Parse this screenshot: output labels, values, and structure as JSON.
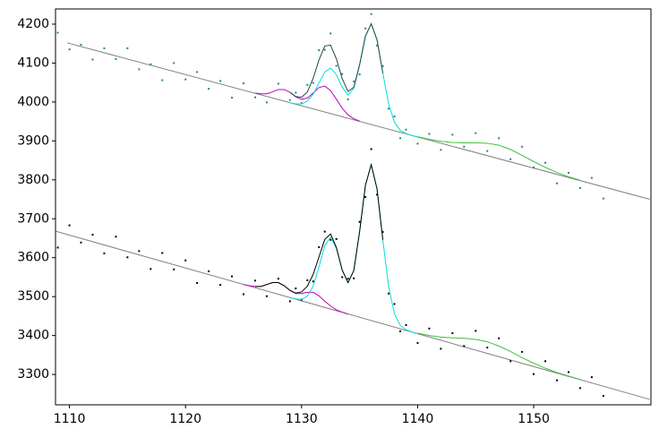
{
  "chart_data": {
    "type": "scatter",
    "xlim": [
      1108.8,
      1160.1
    ],
    "ylim": [
      3222,
      4239
    ],
    "xticks": [
      1110,
      1120,
      1130,
      1140,
      1150
    ],
    "yticks": [
      3300,
      3400,
      3500,
      3600,
      3700,
      3800,
      3900,
      4000,
      4100,
      4200
    ],
    "series": [
      {
        "style": "line",
        "color": "#808080",
        "x": [
          1109.8,
          1160
        ],
        "values": [
          4152,
          3750
        ]
      },
      {
        "style": "line",
        "color": "#808080",
        "x": [
          1108.8,
          1160
        ],
        "values": [
          3668,
          3236
        ]
      },
      {
        "style": "markers",
        "color": "#1a8a80",
        "x": [
          1109,
          1110,
          1111,
          1112,
          1113,
          1114,
          1115,
          1116,
          1117,
          1118,
          1119,
          1120,
          1121,
          1122,
          1123,
          1124,
          1125,
          1126,
          1127,
          1128,
          1129,
          1129.5,
          1130,
          1130.5,
          1131,
          1131.5,
          1132,
          1132.5,
          1133,
          1133.5,
          1134,
          1134.5,
          1135,
          1135.5,
          1136,
          1136.5,
          1137,
          1137.5,
          1138,
          1138.5,
          1139,
          1140,
          1141,
          1142,
          1143,
          1144,
          1145,
          1146,
          1147,
          1148,
          1149,
          1150,
          1151,
          1152,
          1153,
          1154,
          1155,
          1156
        ],
        "values": [
          4178,
          4135,
          4147,
          4109,
          4138,
          4110,
          4138,
          4084,
          4097,
          4056,
          4100,
          4058,
          4077,
          4034,
          4054,
          4011,
          4048,
          4012,
          3999,
          4047,
          4005,
          4024,
          3997,
          4044,
          4049,
          4133,
          4134,
          4176,
          4093,
          4072,
          4007,
          4053,
          4071,
          4189,
          4226,
          4145,
          4092,
          3983,
          3963,
          3907,
          3929,
          3893,
          3918,
          3877,
          3916,
          3885,
          3920,
          3874,
          3907,
          3853,
          3885,
          3832,
          3844,
          3791,
          3818,
          3779,
          3805,
          3752
        ]
      },
      {
        "style": "markers",
        "color": "#000000",
        "x": [
          1109,
          1110,
          1111,
          1112,
          1113,
          1114,
          1115,
          1116,
          1117,
          1118,
          1119,
          1120,
          1121,
          1122,
          1123,
          1124,
          1125,
          1126,
          1127,
          1128,
          1129,
          1129.5,
          1130,
          1130.5,
          1131,
          1131.5,
          1132,
          1132.5,
          1133,
          1133.5,
          1134,
          1134.5,
          1135,
          1135.5,
          1136,
          1136.5,
          1137,
          1137.5,
          1138,
          1138.5,
          1139,
          1140,
          1141,
          1142,
          1143,
          1144,
          1145,
          1146,
          1147,
          1148,
          1149,
          1150,
          1151,
          1152,
          1153,
          1154,
          1155,
          1156
        ],
        "values": [
          3626,
          3683,
          3639,
          3659,
          3611,
          3654,
          3601,
          3617,
          3571,
          3612,
          3570,
          3593,
          3535,
          3565,
          3530,
          3552,
          3506,
          3541,
          3501,
          3546,
          3488,
          3521,
          3492,
          3542,
          3539,
          3627,
          3667,
          3646,
          3648,
          3550,
          3546,
          3547,
          3692,
          3756,
          3879,
          3762,
          3666,
          3508,
          3481,
          3411,
          3427,
          3381,
          3418,
          3366,
          3406,
          3373,
          3412,
          3369,
          3393,
          3334,
          3358,
          3301,
          3334,
          3285,
          3306,
          3265,
          3293,
          3245
        ]
      },
      {
        "style": "line",
        "color": "#c000c0",
        "x": [
          1126,
          1126.5,
          1127,
          1127.5,
          1128,
          1128.5,
          1129,
          1129.5,
          1130,
          1130.5,
          1131,
          1131.5,
          1132,
          1132.5,
          1133,
          1133.5,
          1134,
          1134.5,
          1135
        ],
        "values": [
          4023,
          4021,
          4021,
          4026,
          4032,
          4032,
          4025,
          4013,
          4007,
          4010,
          4023,
          4037,
          4041,
          4029,
          4007,
          3984,
          3967,
          3957,
          3951
        ]
      },
      {
        "style": "line",
        "color": "#00dede",
        "x": [
          1129,
          1129.5,
          1130,
          1130.5,
          1131,
          1131.5,
          1132,
          1132.5,
          1133,
          1133.5,
          1134,
          1134.5,
          1135,
          1135.5,
          1136,
          1136.5,
          1137,
          1137.5,
          1138,
          1138.5,
          1139,
          1139.5,
          1140
        ],
        "values": [
          3998,
          3995,
          3995,
          4002,
          4020,
          4049,
          4077,
          4087,
          4070,
          4038,
          4018,
          4035,
          4095,
          4169,
          4201,
          4160,
          4074,
          3995,
          3948,
          3927,
          3919,
          3914,
          3910
        ]
      },
      {
        "style": "line",
        "color": "#204848",
        "x": [
          1129,
          1129.5,
          1130,
          1130.5,
          1131,
          1131.5,
          1132,
          1132.5,
          1133,
          1133.5,
          1134,
          1134.5,
          1135,
          1135.5,
          1136,
          1136.5,
          1137
        ],
        "values": [
          4025,
          4014,
          4012,
          4026,
          4061,
          4108,
          4144,
          4146,
          4111,
          4060,
          4027,
          4038,
          4096,
          4169,
          4201,
          4160,
          4074
        ]
      },
      {
        "style": "line",
        "color": "#40c040",
        "x": [
          1140,
          1141,
          1142,
          1143,
          1144,
          1145,
          1146,
          1147,
          1148,
          1149,
          1150,
          1151,
          1152,
          1153,
          1154
        ],
        "values": [
          3911,
          3904,
          3899,
          3896,
          3895,
          3895,
          3894,
          3889,
          3878,
          3863,
          3847,
          3832,
          3819,
          3808,
          3799
        ]
      },
      {
        "style": "line",
        "color": "#c000c0",
        "x": [
          1125,
          1125.5,
          1126,
          1126.5,
          1127,
          1127.5,
          1128,
          1128.5,
          1129,
          1129.5,
          1130,
          1130.5,
          1131,
          1131.5,
          1132,
          1132.5,
          1133,
          1133.5,
          1134
        ],
        "values": [
          3531,
          3528,
          3526,
          3526,
          3531,
          3536,
          3536,
          3528,
          3516,
          3508,
          3508,
          3511,
          3511,
          3502,
          3488,
          3476,
          3466,
          3460,
          3455
        ]
      },
      {
        "style": "line",
        "color": "#00dede",
        "x": [
          1129,
          1129.5,
          1130,
          1130.5,
          1131,
          1131.5,
          1132,
          1132.5,
          1133,
          1133.5,
          1134,
          1134.5,
          1135,
          1135.5,
          1136,
          1136.5,
          1137,
          1137.5,
          1138,
          1138.5,
          1139,
          1139.5,
          1140
        ],
        "values": [
          3498,
          3494,
          3493,
          3501,
          3527,
          3576,
          3631,
          3653,
          3624,
          3568,
          3536,
          3567,
          3667,
          3786,
          3839,
          3777,
          3646,
          3526,
          3456,
          3426,
          3415,
          3409,
          3405
        ]
      },
      {
        "style": "line",
        "color": "#000000",
        "x": [
          1126,
          1126.5,
          1127,
          1127.5,
          1128,
          1128.5,
          1129,
          1129.5,
          1130,
          1130.5,
          1131,
          1131.5,
          1132,
          1132.5,
          1133,
          1133.5,
          1134,
          1134.5,
          1135,
          1135.5,
          1136,
          1136.5,
          1137
        ],
        "values": [
          3526,
          3526,
          3531,
          3536,
          3536,
          3528,
          3516,
          3509,
          3512,
          3527,
          3557,
          3602,
          3647,
          3661,
          3626,
          3568,
          3536,
          3567,
          3667,
          3786,
          3839,
          3777,
          3646
        ]
      },
      {
        "style": "line",
        "color": "#40c040",
        "x": [
          1140,
          1141,
          1142,
          1143,
          1144,
          1145,
          1146,
          1147,
          1148,
          1149,
          1150,
          1151,
          1152,
          1153,
          1154
        ],
        "values": [
          3406,
          3400,
          3396,
          3394,
          3393,
          3390,
          3384,
          3373,
          3359,
          3343,
          3329,
          3316,
          3305,
          3296,
          3287
        ]
      }
    ]
  }
}
